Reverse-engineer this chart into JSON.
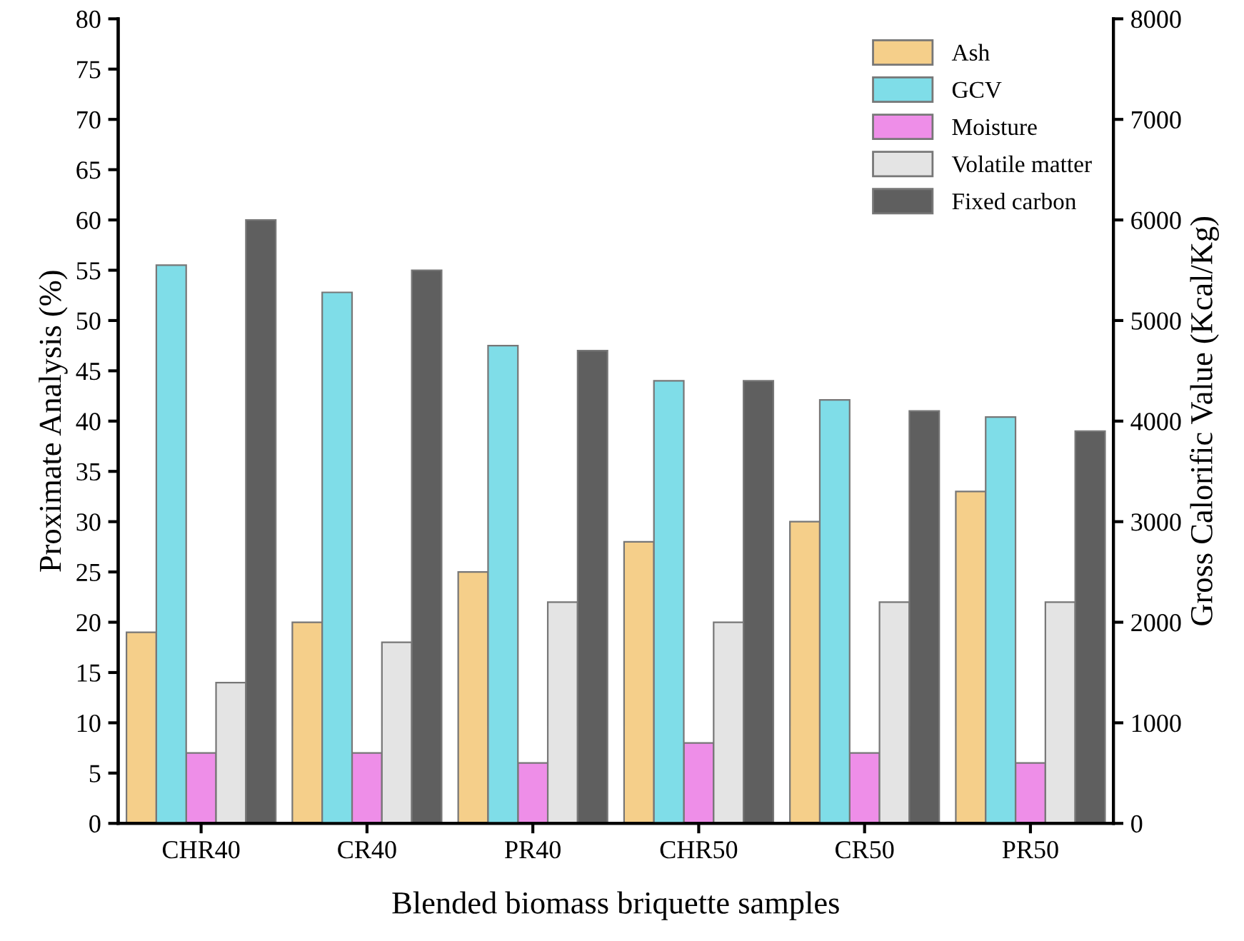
{
  "chart_data": {
    "type": "bar",
    "xlabel": "Blended biomass briquette samples",
    "ylabel": "Proximate Analysis (%)",
    "y2label": "Gross Calorific Value (Kcal/Kg)",
    "categories": [
      "CHR40",
      "CR40",
      "PR40",
      "CHR50",
      "CR50",
      "PR50"
    ],
    "series": [
      {
        "name": "Ash",
        "color": "#f5cf8a",
        "values": [
          19,
          20,
          25,
          28,
          30,
          33
        ]
      },
      {
        "name": "GCV",
        "color": "#7fdde8",
        "axis": "y2",
        "values": [
          5550,
          5280,
          4750,
          4400,
          4210,
          4040
        ]
      },
      {
        "name": "Moisture",
        "color": "#ee8ee8",
        "values": [
          7,
          7,
          6,
          8,
          7,
          6
        ]
      },
      {
        "name": "Volatile matter",
        "color": "#e4e4e4",
        "values": [
          14,
          18,
          22,
          20,
          22,
          22
        ]
      },
      {
        "name": "Fixed carbon",
        "color": "#5f5f5f",
        "values": [
          60,
          55,
          47,
          44,
          41,
          39
        ]
      }
    ],
    "ylim": [
      0,
      80
    ],
    "yticks": [
      0,
      5,
      10,
      15,
      20,
      25,
      30,
      35,
      40,
      45,
      50,
      55,
      60,
      65,
      70,
      75,
      80
    ],
    "y2lim": [
      0,
      8000
    ],
    "y2ticks": [
      0,
      1000,
      2000,
      3000,
      4000,
      5000,
      6000,
      7000,
      8000
    ],
    "grid": false,
    "legend": "top right"
  }
}
